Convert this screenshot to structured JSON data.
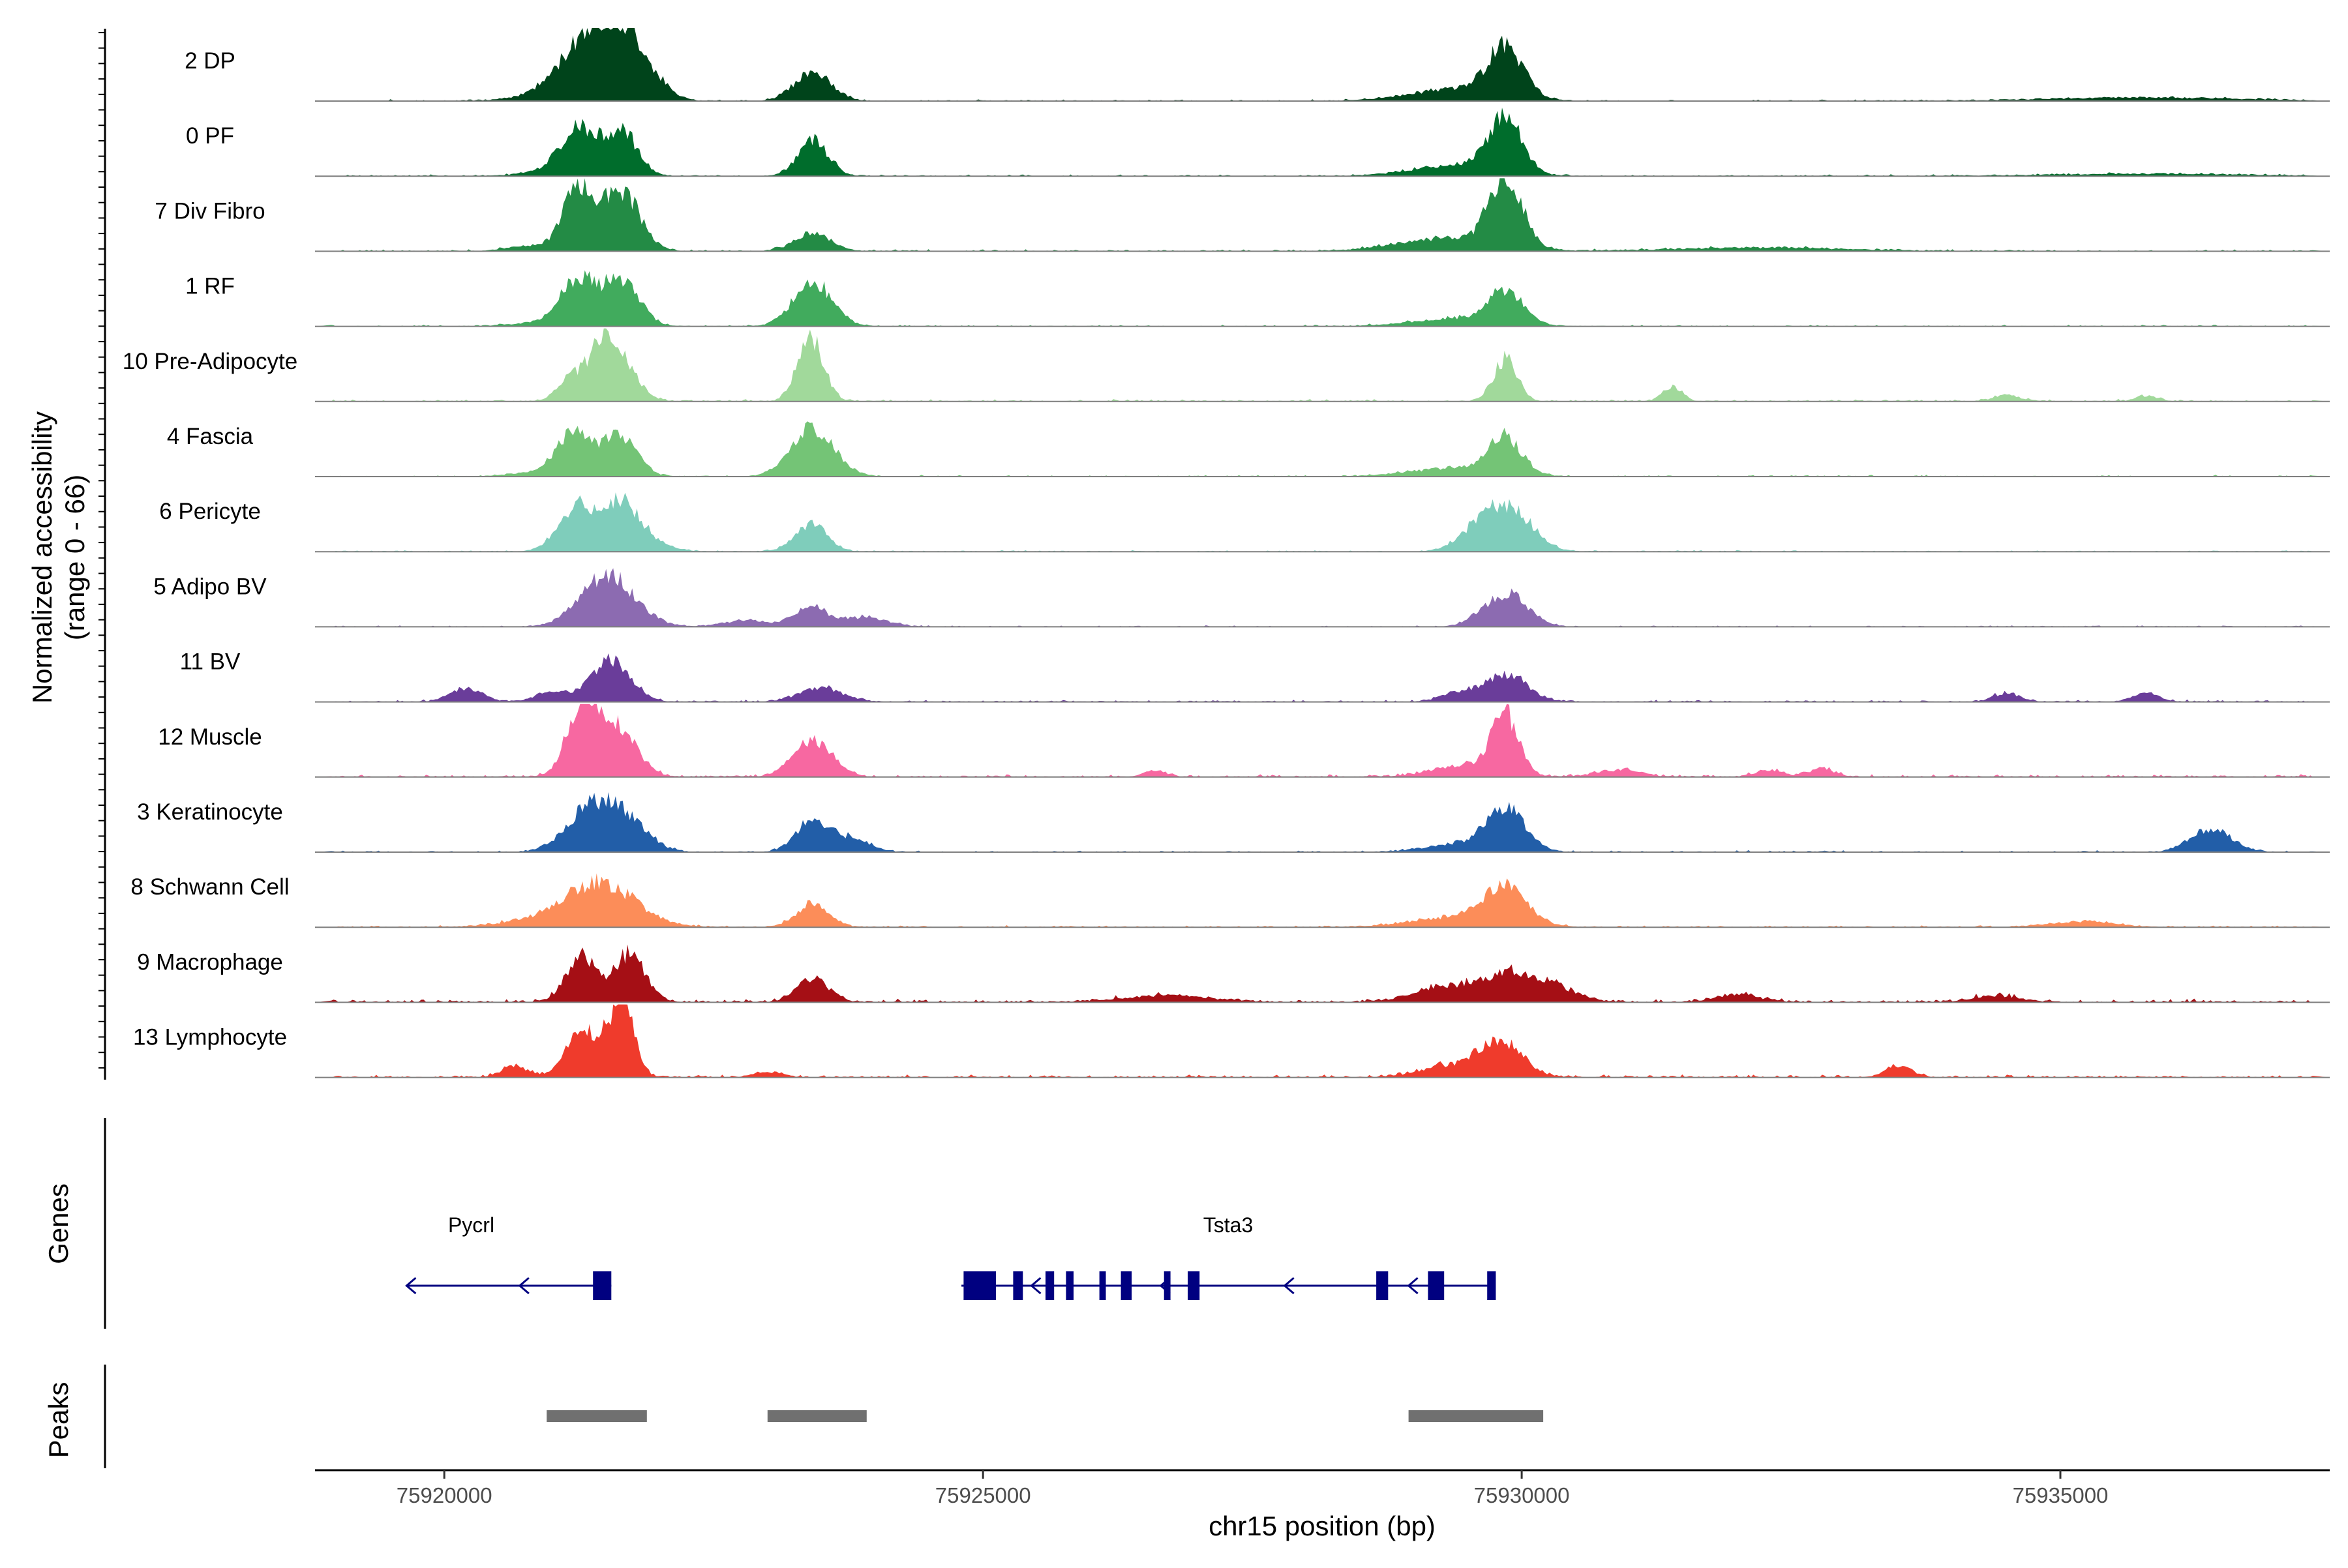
{
  "chart_data": {
    "type": "area",
    "title": "",
    "chromosome": "chr15",
    "xlabel": "chr15 position (bp)",
    "ylabel_line1": "Normalized accessibility",
    "ylabel_line2": "(range 0 - 66)",
    "y_range": [
      0,
      66
    ],
    "xlim": [
      75918800,
      75937500
    ],
    "x_ticks": [
      75920000,
      75925000,
      75930000,
      75935000
    ],
    "x_tick_labels": [
      "75920000",
      "75925000",
      "75930000",
      "75935000"
    ],
    "genes_label": "Genes",
    "peaks_label": "Peaks",
    "tracks": [
      {
        "name": "2 DP",
        "color": "#00441b",
        "peaks": [
          [
            75921380,
            58,
            260
          ],
          [
            75921720,
            42,
            220
          ],
          [
            75923420,
            26,
            170
          ],
          [
            75929850,
            45,
            160
          ],
          [
            75929400,
            11,
            420
          ],
          [
            75921000,
            6,
            300
          ],
          [
            75935800,
            3,
            900
          ]
        ],
        "noise": 1.6
      },
      {
        "name": "0 PF",
        "color": "#006d2c",
        "peaks": [
          [
            75921250,
            42,
            160
          ],
          [
            75921640,
            40,
            150
          ],
          [
            75923420,
            32,
            140
          ],
          [
            75929850,
            50,
            150
          ],
          [
            75929400,
            10,
            400
          ],
          [
            75921000,
            5,
            250
          ],
          [
            75935800,
            2,
            900
          ]
        ],
        "noise": 1.6
      },
      {
        "name": "7 Div Fibro",
        "color": "#238b45",
        "peaks": [
          [
            75921250,
            58,
            140
          ],
          [
            75921650,
            52,
            170
          ],
          [
            75923420,
            17,
            160
          ],
          [
            75929850,
            66,
            150
          ],
          [
            75929300,
            11,
            450
          ],
          [
            75920800,
            5,
            200
          ],
          [
            75932200,
            3,
            800
          ]
        ],
        "noise": 1.9
      },
      {
        "name": "1 RF",
        "color": "#41ab5d",
        "peaks": [
          [
            75921250,
            40,
            160
          ],
          [
            75921650,
            42,
            160
          ],
          [
            75923420,
            40,
            180
          ],
          [
            75929850,
            30,
            160
          ],
          [
            75929400,
            7,
            400
          ],
          [
            75921000,
            4,
            300
          ]
        ],
        "noise": 1.5
      },
      {
        "name": "10 Pre-Adipocyte",
        "color": "#a1d99b",
        "peaks": [
          [
            75921200,
            22,
            130
          ],
          [
            75921600,
            45,
            160
          ],
          [
            75923400,
            58,
            120
          ],
          [
            75929850,
            38,
            110
          ],
          [
            75931400,
            13,
            90
          ],
          [
            75921450,
            28,
            100
          ],
          [
            75934500,
            6,
            120
          ],
          [
            75935800,
            5,
            100
          ]
        ],
        "noise": 2.2
      },
      {
        "name": "4 Fascia",
        "color": "#74c476",
        "peaks": [
          [
            75921200,
            40,
            150
          ],
          [
            75921620,
            38,
            160
          ],
          [
            75923420,
            44,
            200
          ],
          [
            75929850,
            32,
            150
          ],
          [
            75929400,
            8,
            400
          ],
          [
            75920900,
            4,
            250
          ]
        ],
        "noise": 1.5
      },
      {
        "name": "6 Pericyte",
        "color": "#7fcdbb",
        "peaks": [
          [
            75921200,
            35,
            160
          ],
          [
            75921600,
            32,
            190
          ],
          [
            75923400,
            25,
            150
          ],
          [
            75929650,
            26,
            200
          ],
          [
            75929950,
            28,
            200
          ],
          [
            75921700,
            15,
            250
          ]
        ],
        "noise": 1.4
      },
      {
        "name": "5 Adipo BV",
        "color": "#8c6bb1",
        "peaks": [
          [
            75921520,
            46,
            250
          ],
          [
            75923400,
            18,
            150
          ],
          [
            75923900,
            9,
            200
          ],
          [
            75929850,
            30,
            200
          ],
          [
            75922800,
            6,
            200
          ]
        ],
        "noise": 1.4
      },
      {
        "name": "11 BV",
        "color": "#6a3d9a",
        "peaks": [
          [
            75921550,
            38,
            180
          ],
          [
            75920200,
            12,
            150
          ],
          [
            75921000,
            9,
            150
          ],
          [
            75923500,
            12,
            200
          ],
          [
            75929850,
            24,
            200
          ],
          [
            75929400,
            8,
            150
          ],
          [
            75934500,
            8,
            120
          ],
          [
            75935800,
            8,
            120
          ]
        ],
        "noise": 2.0
      },
      {
        "name": "12 Muscle",
        "color": "#f768a1",
        "peaks": [
          [
            75921280,
            66,
            140
          ],
          [
            75921600,
            45,
            180
          ],
          [
            75923420,
            34,
            180
          ],
          [
            75929850,
            52,
            120
          ],
          [
            75929500,
            11,
            300
          ],
          [
            75926600,
            6,
            100
          ],
          [
            75930900,
            6,
            200
          ],
          [
            75932300,
            6,
            120
          ],
          [
            75932800,
            7,
            120
          ]
        ],
        "noise": 2.6
      },
      {
        "name": "3 Keratinocyte",
        "color": "#225ea8",
        "peaks": [
          [
            75921350,
            38,
            220
          ],
          [
            75921700,
            25,
            200
          ],
          [
            75923420,
            30,
            150
          ],
          [
            75923800,
            13,
            150
          ],
          [
            75929850,
            38,
            180
          ],
          [
            75929400,
            7,
            300
          ],
          [
            75936450,
            17,
            170
          ],
          [
            75936250,
            7,
            150
          ]
        ],
        "noise": 1.6
      },
      {
        "name": "8 Schwann Cell",
        "color": "#fc8d59",
        "peaks": [
          [
            75921450,
            40,
            320
          ],
          [
            75923420,
            20,
            150
          ],
          [
            75929850,
            32,
            200
          ],
          [
            75929400,
            9,
            400
          ],
          [
            75935200,
            5,
            300
          ],
          [
            75920800,
            5,
            300
          ]
        ],
        "noise": 1.7
      },
      {
        "name": "9 Macrophage",
        "color": "#a50f15",
        "peaks": [
          [
            75921270,
            40,
            140
          ],
          [
            75921720,
            44,
            140
          ],
          [
            75923420,
            22,
            150
          ],
          [
            75929950,
            26,
            250
          ],
          [
            75929300,
            14,
            300
          ],
          [
            75930400,
            8,
            200
          ],
          [
            75926700,
            6,
            400
          ],
          [
            75932000,
            7,
            200
          ],
          [
            75934400,
            6,
            200
          ]
        ],
        "noise": 3.0
      },
      {
        "name": "13 Lymphocyte",
        "color": "#ef3b2c",
        "peaks": [
          [
            75921300,
            42,
            160
          ],
          [
            75921650,
            66,
            110
          ],
          [
            75929800,
            33,
            200
          ],
          [
            75929300,
            10,
            250
          ],
          [
            75920650,
            10,
            120
          ],
          [
            75933500,
            10,
            120
          ],
          [
            75923000,
            5,
            120
          ]
        ],
        "noise": 2.8
      }
    ],
    "genes": [
      {
        "name": "Pycrl",
        "strand": "-",
        "start": 75919650,
        "end": 75921550,
        "exons": [
          [
            75921380,
            75921550
          ]
        ],
        "arrows": [
          75919650,
          75920700
        ]
      },
      {
        "name": "Tsta3",
        "strand": "-",
        "start": 75924800,
        "end": 75929750,
        "exons": [
          [
            75924820,
            75925120
          ],
          [
            75925280,
            75925370
          ],
          [
            75925580,
            75925660
          ],
          [
            75925770,
            75925840
          ],
          [
            75926080,
            75926140
          ],
          [
            75926280,
            75926380
          ],
          [
            75926680,
            75926740
          ],
          [
            75926900,
            75927010
          ],
          [
            75928650,
            75928760
          ],
          [
            75929130,
            75929280
          ],
          [
            75929680,
            75929760
          ]
        ],
        "arrows": [
          75925450,
          75926650,
          75927800,
          75928950
        ]
      }
    ],
    "peaks": [
      [
        75920950,
        75921880
      ],
      [
        75923000,
        75923920
      ],
      [
        75928950,
        75930200
      ]
    ]
  }
}
